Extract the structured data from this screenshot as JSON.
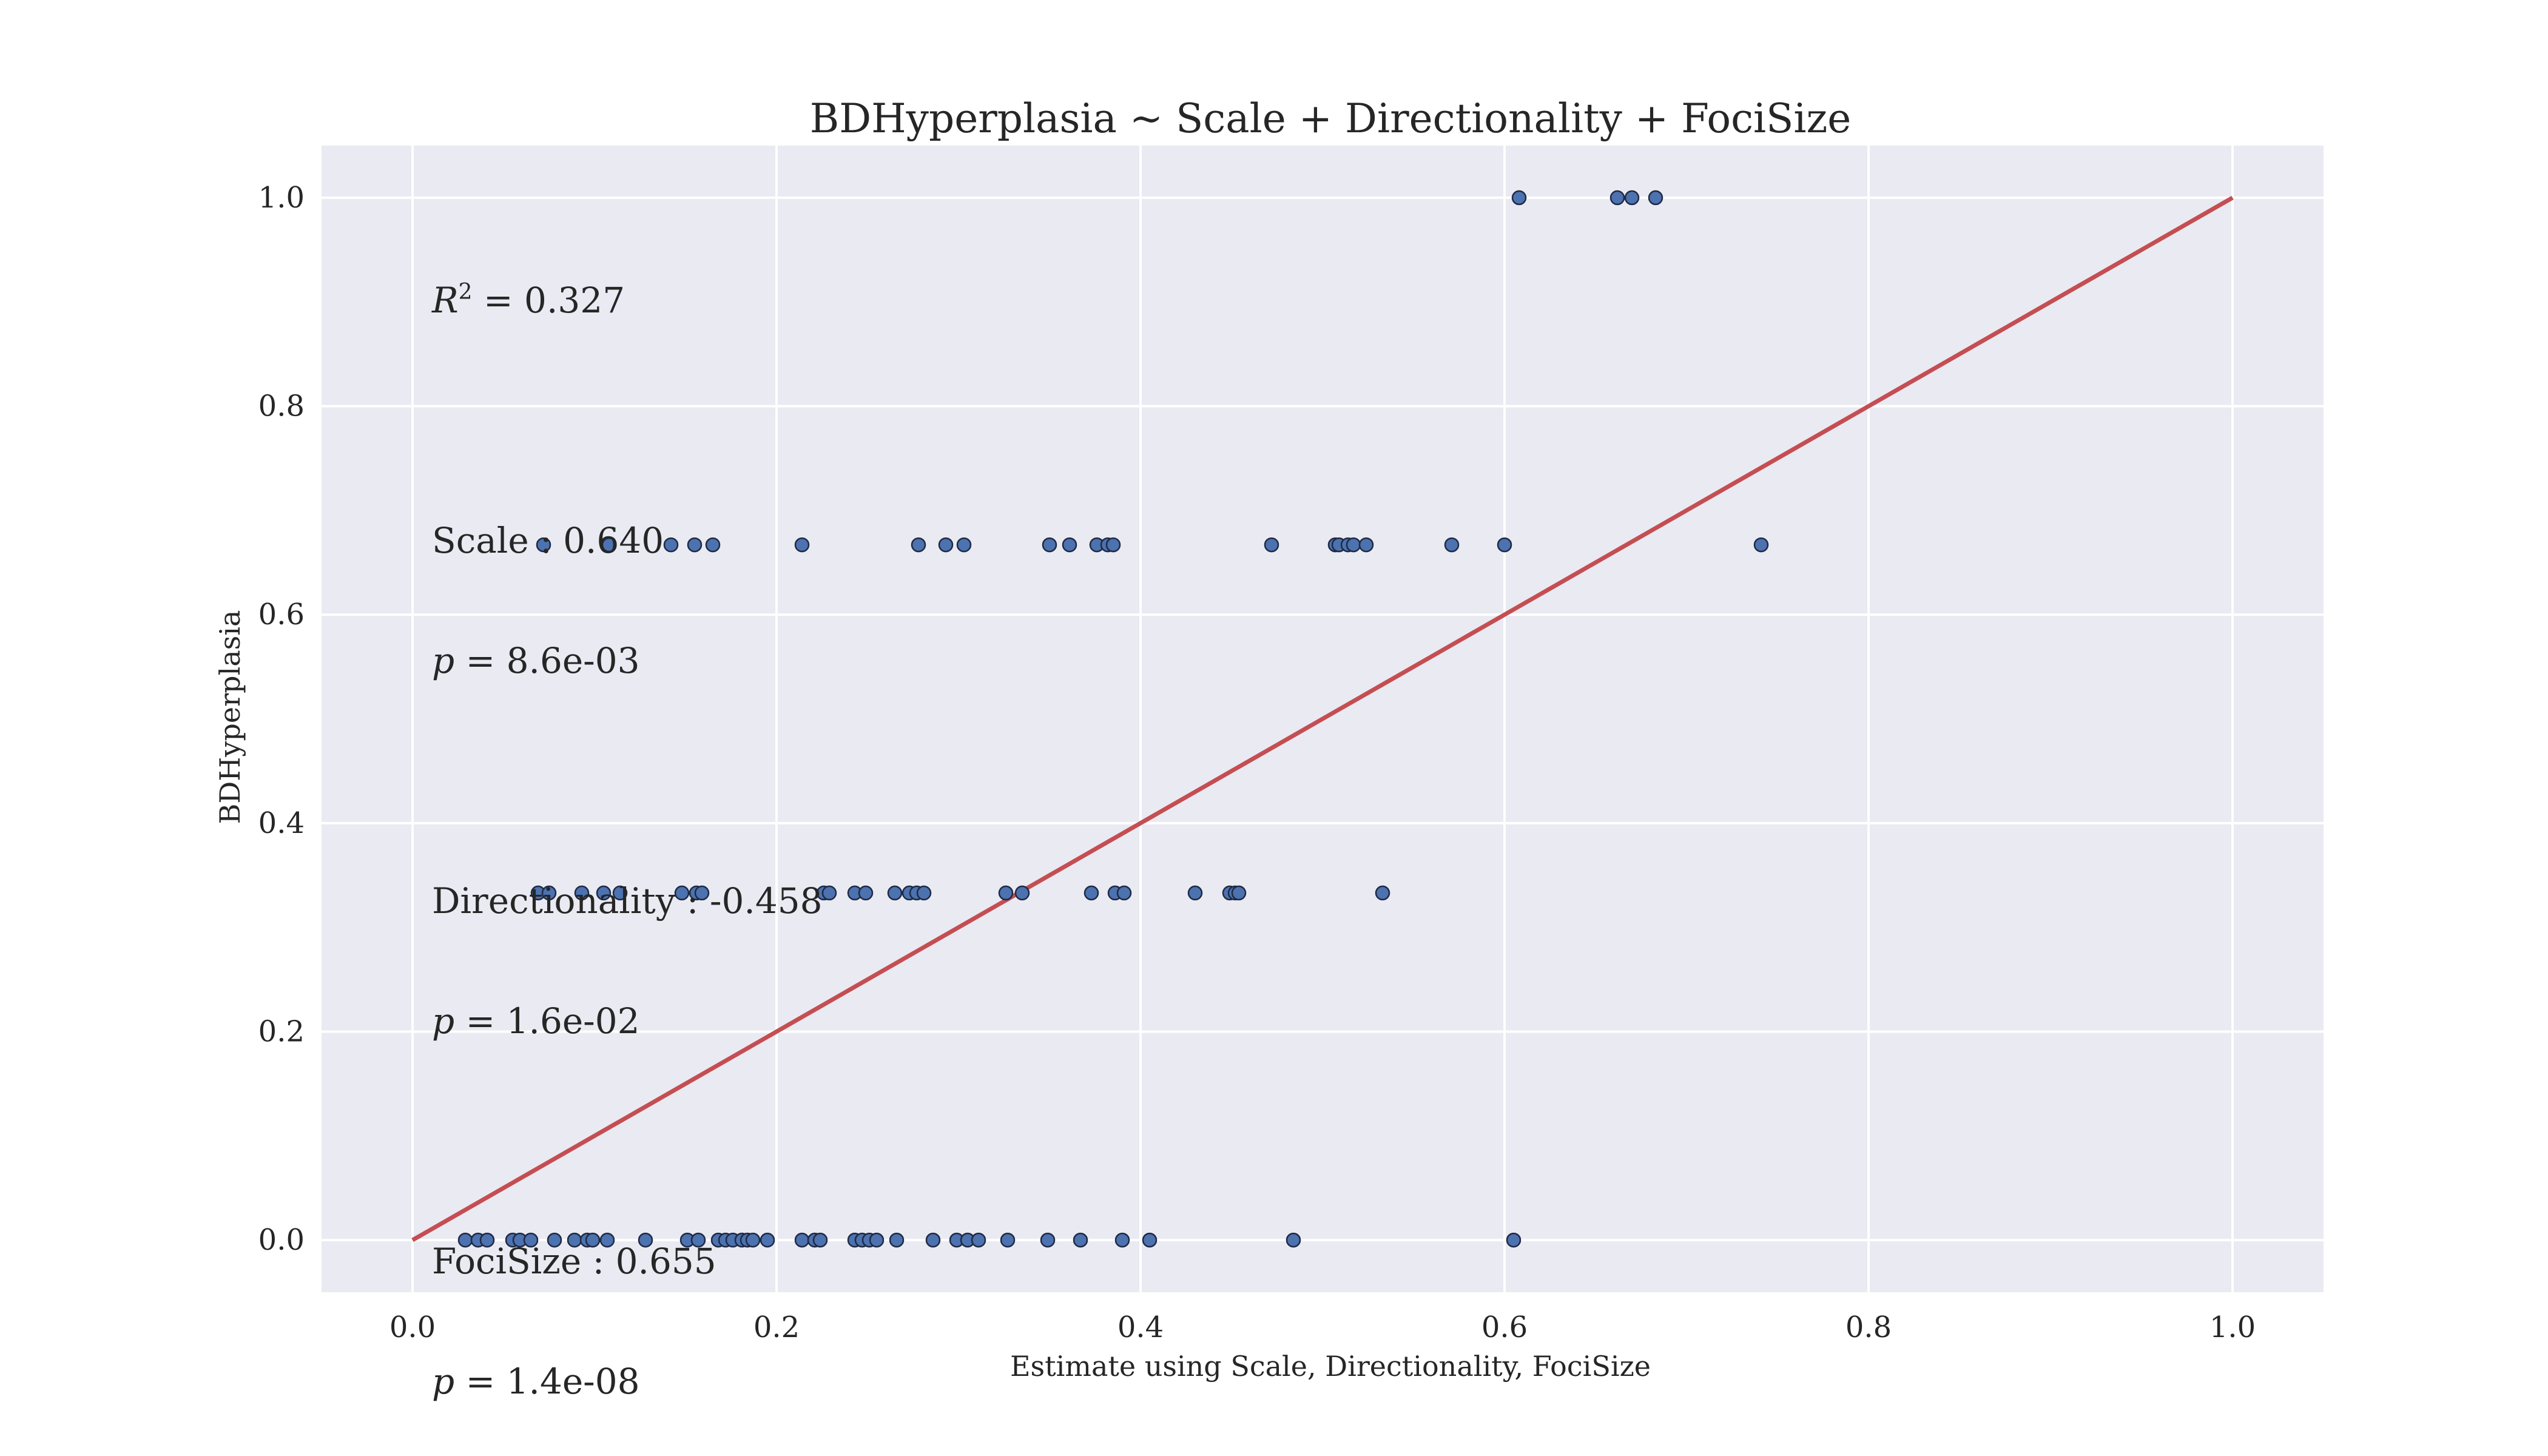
{
  "chart_data": {
    "type": "scatter",
    "title": "BDHyperplasia ~ Scale + Directionality + FociSize",
    "xlabel": "Estimate using Scale, Directionality, FociSize",
    "ylabel": "BDHyperplasia",
    "xlim": [
      -0.05,
      1.05
    ],
    "ylim": [
      -0.05,
      1.05
    ],
    "xticks": [
      "0.0",
      "0.2",
      "0.4",
      "0.6",
      "0.8",
      "1.0"
    ],
    "yticks": [
      "0.0",
      "0.2",
      "0.4",
      "0.6",
      "0.8",
      "1.0"
    ],
    "grid": true,
    "background": "#eaeaf2",
    "point_color": "#4c72b0",
    "line_color": "#c44e52",
    "reference_line": {
      "x": [
        0,
        1
      ],
      "y": [
        0,
        1
      ]
    },
    "annotations": {
      "r2_label": "R",
      "r2_sup": "2",
      "r2_value": " = 0.327",
      "scale_line": "Scale : 0.640",
      "scale_p_sym": "p",
      "scale_p_val": " = 8.6e-03",
      "dir_line": "Directionality : -0.458",
      "dir_p_sym": "p",
      "dir_p_val": " = 1.6e-02",
      "foci_line": "FociSize : 0.655",
      "foci_p_sym": "p",
      "foci_p_val": " = 1.4e-08"
    },
    "points": [
      [
        0.608,
        1.0
      ],
      [
        0.662,
        1.0
      ],
      [
        0.67,
        1.0
      ],
      [
        0.683,
        1.0
      ],
      [
        0.072,
        0.667
      ],
      [
        0.108,
        0.667
      ],
      [
        0.142,
        0.667
      ],
      [
        0.155,
        0.667
      ],
      [
        0.165,
        0.667
      ],
      [
        0.214,
        0.667
      ],
      [
        0.278,
        0.667
      ],
      [
        0.293,
        0.667
      ],
      [
        0.303,
        0.667
      ],
      [
        0.35,
        0.667
      ],
      [
        0.361,
        0.667
      ],
      [
        0.376,
        0.667
      ],
      [
        0.382,
        0.667
      ],
      [
        0.385,
        0.667
      ],
      [
        0.472,
        0.667
      ],
      [
        0.507,
        0.667
      ],
      [
        0.509,
        0.667
      ],
      [
        0.514,
        0.667
      ],
      [
        0.517,
        0.667
      ],
      [
        0.524,
        0.667
      ],
      [
        0.571,
        0.667
      ],
      [
        0.6,
        0.667
      ],
      [
        0.741,
        0.667
      ],
      [
        0.069,
        0.333
      ],
      [
        0.075,
        0.333
      ],
      [
        0.093,
        0.333
      ],
      [
        0.105,
        0.333
      ],
      [
        0.114,
        0.333
      ],
      [
        0.148,
        0.333
      ],
      [
        0.156,
        0.333
      ],
      [
        0.159,
        0.333
      ],
      [
        0.226,
        0.333
      ],
      [
        0.229,
        0.333
      ],
      [
        0.243,
        0.333
      ],
      [
        0.249,
        0.333
      ],
      [
        0.265,
        0.333
      ],
      [
        0.273,
        0.333
      ],
      [
        0.277,
        0.333
      ],
      [
        0.281,
        0.333
      ],
      [
        0.326,
        0.333
      ],
      [
        0.335,
        0.333
      ],
      [
        0.373,
        0.333
      ],
      [
        0.386,
        0.333
      ],
      [
        0.391,
        0.333
      ],
      [
        0.43,
        0.333
      ],
      [
        0.449,
        0.333
      ],
      [
        0.452,
        0.333
      ],
      [
        0.454,
        0.333
      ],
      [
        0.533,
        0.333
      ],
      [
        0.029,
        0.0
      ],
      [
        0.036,
        0.0
      ],
      [
        0.041,
        0.0
      ],
      [
        0.055,
        0.0
      ],
      [
        0.059,
        0.0
      ],
      [
        0.065,
        0.0
      ],
      [
        0.078,
        0.0
      ],
      [
        0.089,
        0.0
      ],
      [
        0.096,
        0.0
      ],
      [
        0.099,
        0.0
      ],
      [
        0.107,
        0.0
      ],
      [
        0.128,
        0.0
      ],
      [
        0.151,
        0.0
      ],
      [
        0.157,
        0.0
      ],
      [
        0.168,
        0.0
      ],
      [
        0.172,
        0.0
      ],
      [
        0.176,
        0.0
      ],
      [
        0.181,
        0.0
      ],
      [
        0.184,
        0.0
      ],
      [
        0.187,
        0.0
      ],
      [
        0.195,
        0.0
      ],
      [
        0.214,
        0.0
      ],
      [
        0.221,
        0.0
      ],
      [
        0.224,
        0.0
      ],
      [
        0.243,
        0.0
      ],
      [
        0.247,
        0.0
      ],
      [
        0.251,
        0.0
      ],
      [
        0.255,
        0.0
      ],
      [
        0.266,
        0.0
      ],
      [
        0.286,
        0.0
      ],
      [
        0.299,
        0.0
      ],
      [
        0.305,
        0.0
      ],
      [
        0.311,
        0.0
      ],
      [
        0.327,
        0.0
      ],
      [
        0.349,
        0.0
      ],
      [
        0.367,
        0.0
      ],
      [
        0.39,
        0.0
      ],
      [
        0.405,
        0.0
      ],
      [
        0.484,
        0.0
      ],
      [
        0.605,
        0.0
      ]
    ]
  }
}
